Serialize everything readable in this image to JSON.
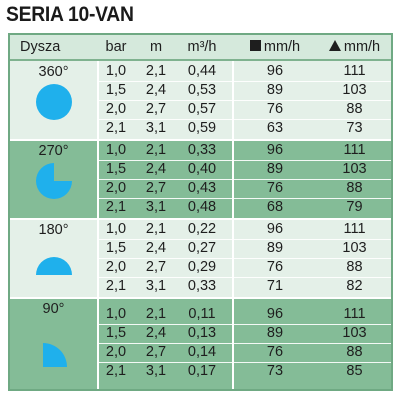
{
  "title": "SERIA 10-VAN",
  "header": {
    "col_nozzle": "Dysza",
    "col_bar": "bar",
    "col_m": "m",
    "col_flow": "m³/h",
    "col_square": "mm/h",
    "col_triangle": "mm/h"
  },
  "colors": {
    "light_band": "#e4f0e8",
    "dark_band": "#84bc97",
    "nozzle_icon": "#1fb0ec"
  },
  "groups": [
    {
      "angle": "360°",
      "icon": "full-circle-nozzle-icon",
      "rows": [
        {
          "bar": "1,0",
          "m": "2,1",
          "flow": "0,44",
          "square": "96",
          "triangle": "111"
        },
        {
          "bar": "1,5",
          "m": "2,4",
          "flow": "0,53",
          "square": "89",
          "triangle": "103"
        },
        {
          "bar": "2,0",
          "m": "2,7",
          "flow": "0,57",
          "square": "76",
          "triangle": "88"
        },
        {
          "bar": "2,1",
          "m": "3,1",
          "flow": "0,59",
          "square": "63",
          "triangle": "73"
        }
      ]
    },
    {
      "angle": "270°",
      "icon": "three-quarter-circle-nozzle-icon",
      "rows": [
        {
          "bar": "1,0",
          "m": "2,1",
          "flow": "0,33",
          "square": "96",
          "triangle": "111"
        },
        {
          "bar": "1,5",
          "m": "2,4",
          "flow": "0,40",
          "square": "89",
          "triangle": "103"
        },
        {
          "bar": "2,0",
          "m": "2,7",
          "flow": "0,43",
          "square": "76",
          "triangle": "88"
        },
        {
          "bar": "2,1",
          "m": "3,1",
          "flow": "0,48",
          "square": "68",
          "triangle": "79"
        }
      ]
    },
    {
      "angle": "180°",
      "icon": "half-circle-nozzle-icon",
      "rows": [
        {
          "bar": "1,0",
          "m": "2,1",
          "flow": "0,22",
          "square": "96",
          "triangle": "111"
        },
        {
          "bar": "1,5",
          "m": "2,4",
          "flow": "0,27",
          "square": "89",
          "triangle": "103"
        },
        {
          "bar": "2,0",
          "m": "2,7",
          "flow": "0,29",
          "square": "76",
          "triangle": "88"
        },
        {
          "bar": "2,1",
          "m": "3,1",
          "flow": "0,33",
          "square": "71",
          "triangle": "82"
        }
      ]
    },
    {
      "angle": "90°",
      "icon": "quarter-circle-nozzle-icon",
      "rows": [
        {
          "bar": "1,0",
          "m": "2,1",
          "flow": "0,11",
          "square": "96",
          "triangle": "111"
        },
        {
          "bar": "1,5",
          "m": "2,4",
          "flow": "0,13",
          "square": "89",
          "triangle": "103"
        },
        {
          "bar": "2,0",
          "m": "2,7",
          "flow": "0,14",
          "square": "76",
          "triangle": "88"
        },
        {
          "bar": "2,1",
          "m": "3,1",
          "flow": "0,17",
          "square": "73",
          "triangle": "85"
        }
      ]
    }
  ]
}
